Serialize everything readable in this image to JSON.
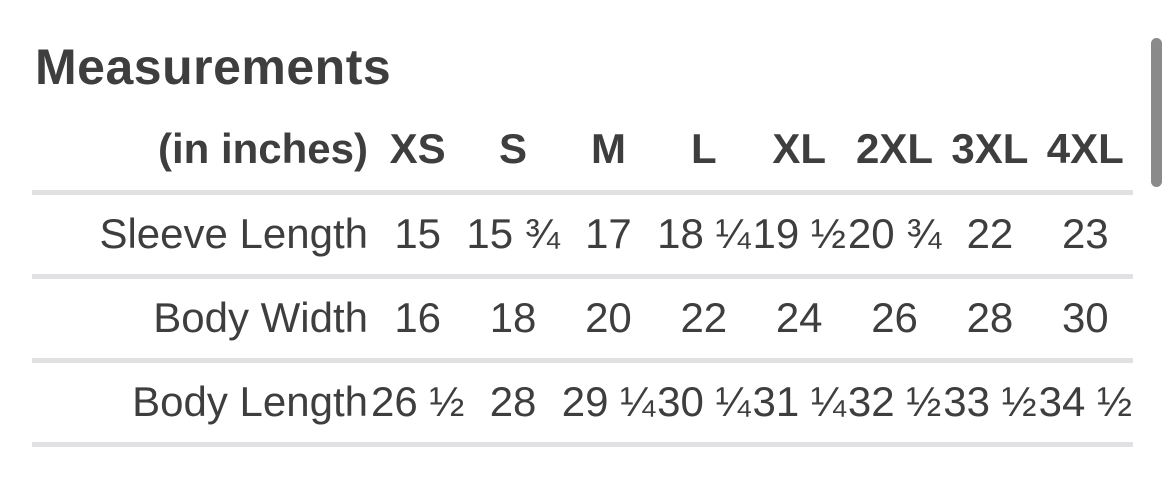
{
  "colors": {
    "text": "#3e3e3e",
    "divider": "#e1e1e4",
    "scrollbar_thumb": "#8a8a8a",
    "background": "#ffffff"
  },
  "page": {
    "title": "Measurements"
  },
  "table": {
    "unit_label": "(in inches)",
    "size_columns": [
      "XS",
      "S",
      "M",
      "L",
      "XL",
      "2XL",
      "3XL",
      "4XL"
    ],
    "rows": [
      {
        "label": "Sleeve Length",
        "values": [
          "15",
          "15 ¾",
          "17",
          "18 ¼",
          "19 ½",
          "20 ¾",
          "22",
          "23"
        ]
      },
      {
        "label": "Body Width",
        "values": [
          "16",
          "18",
          "20",
          "22",
          "24",
          "26",
          "28",
          "30"
        ]
      },
      {
        "label": "Body Length",
        "values": [
          "26 ½",
          "28",
          "29 ¼",
          "30 ¼",
          "31 ¼",
          "32 ½",
          "33 ½",
          "34 ½"
        ]
      }
    ]
  }
}
